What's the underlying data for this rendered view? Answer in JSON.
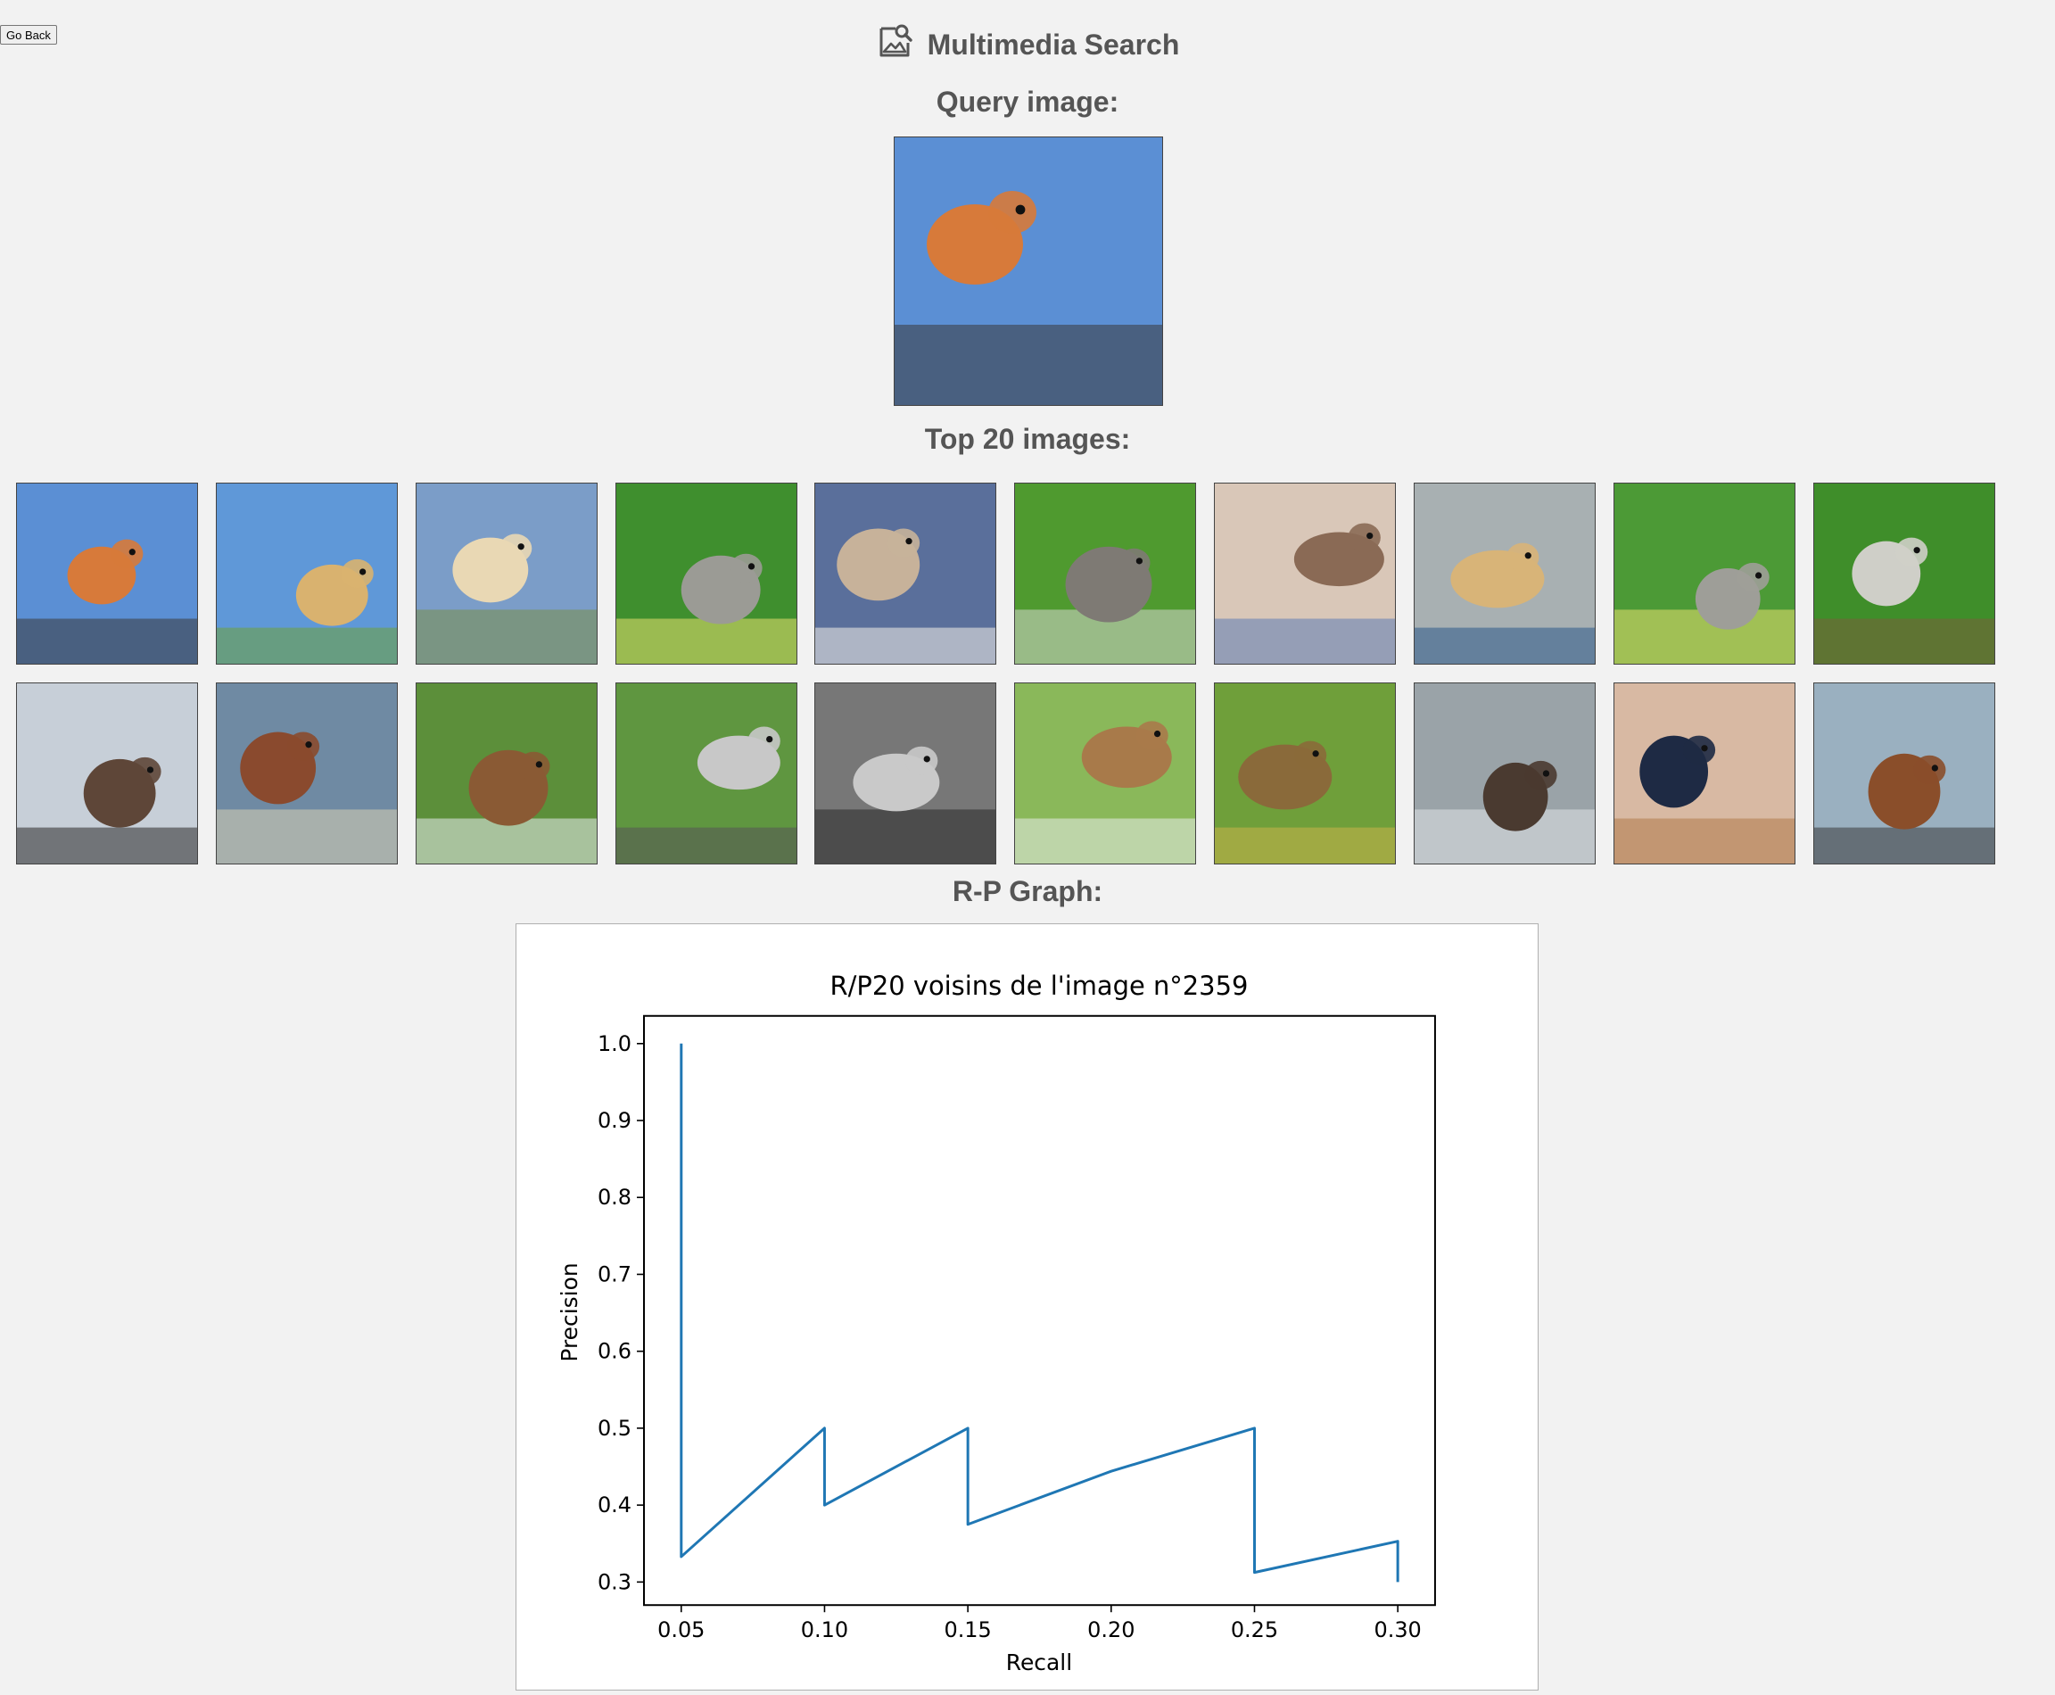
{
  "nav": {
    "go_back_label": "Go Back"
  },
  "header": {
    "title": "Multimedia Search",
    "icon": "image-search-icon"
  },
  "query": {
    "label": "Query image:",
    "image": {
      "name": "robin-on-branch",
      "colors": {
        "bg": "#5b8fd4",
        "subject": "#d77a3a",
        "accent": "#3a3a3a"
      }
    }
  },
  "results": {
    "label": "Top 20 images:",
    "images": [
      {
        "name": "robin-on-branch",
        "colors": {
          "bg": "#5b8fd4",
          "subject": "#d77a3a",
          "accent": "#3a3a3a"
        }
      },
      {
        "name": "golden-retriever-field",
        "colors": {
          "bg": "#5f98d8",
          "subject": "#d9b26f",
          "accent": "#6ea23a"
        }
      },
      {
        "name": "puppy-with-stick",
        "colors": {
          "bg": "#7b9dc8",
          "subject": "#e9d8b4",
          "accent": "#7a8e4a"
        }
      },
      {
        "name": "great-grey-owl",
        "colors": {
          "bg": "#3f8f2e",
          "subject": "#9b9b95",
          "accent": "#e8e070"
        }
      },
      {
        "name": "fox-tail-blanket",
        "colors": {
          "bg": "#5a6f9b",
          "subject": "#c7b29a",
          "accent": "#f4efe8"
        }
      },
      {
        "name": "bird-on-grass",
        "colors": {
          "bg": "#4f9a2f",
          "subject": "#7e7a74",
          "accent": "#d7d7d0"
        }
      },
      {
        "name": "husky-on-bed",
        "colors": {
          "bg": "#d9c7b8",
          "subject": "#8a6a55",
          "accent": "#5c7bb5"
        }
      },
      {
        "name": "puppy-in-basket",
        "colors": {
          "bg": "#a8b0b2",
          "subject": "#d8b478",
          "accent": "#2c5a8a"
        }
      },
      {
        "name": "great-grey-owl-2",
        "colors": {
          "bg": "#4c9a36",
          "subject": "#9e9e98",
          "accent": "#e8e070"
        }
      },
      {
        "name": "bulbul-on-twig",
        "colors": {
          "bg": "#3f8e2a",
          "subject": "#cfcfc8",
          "accent": "#7a5e3a"
        }
      },
      {
        "name": "tarantula-closeup",
        "colors": {
          "bg": "#c7cfd8",
          "subject": "#5e4638",
          "accent": "#2a2a2a"
        }
      },
      {
        "name": "dachshund-pillow",
        "colors": {
          "bg": "#6f8aa3",
          "subject": "#8a4a2e",
          "accent": "#d7d0b4"
        }
      },
      {
        "name": "dogs-on-lawn",
        "colors": {
          "bg": "#5c8f3a",
          "subject": "#8a5a34",
          "accent": "#e8ecef"
        }
      },
      {
        "name": "husky-on-grass",
        "colors": {
          "bg": "#5f9640",
          "subject": "#c8c8c8",
          "accent": "#555555"
        }
      },
      {
        "name": "golden-retriever-bw",
        "colors": {
          "bg": "#777777",
          "subject": "#c9c9c9",
          "accent": "#2a2a2a"
        }
      },
      {
        "name": "spider-in-web",
        "colors": {
          "bg": "#8ab85a",
          "subject": "#a87a4a",
          "accent": "#e8ecea"
        }
      },
      {
        "name": "bird-on-bananas",
        "colors": {
          "bg": "#6f9f3a",
          "subject": "#8a6a3a",
          "accent": "#c9b24a"
        }
      },
      {
        "name": "tarantula-jar",
        "colors": {
          "bg": "#9aa3a8",
          "subject": "#4a3a30",
          "accent": "#e0e4e6"
        }
      },
      {
        "name": "rottweiler-head",
        "colors": {
          "bg": "#d8b9a3",
          "subject": "#1e2a44",
          "accent": "#b07a4a"
        }
      },
      {
        "name": "dogs-in-water",
        "colors": {
          "bg": "#9ab0c0",
          "subject": "#8a4e2a",
          "accent": "#3a3a3a"
        }
      }
    ]
  },
  "graph": {
    "label": "R-P Graph:"
  },
  "chart_data": {
    "type": "line",
    "title": "R/P20 voisins de l'image n°2359",
    "xlabel": "Recall",
    "ylabel": "Precision",
    "xlim": [
      0.037,
      0.313
    ],
    "ylim": [
      0.27,
      1.036
    ],
    "xticks": [
      0.05,
      0.1,
      0.15,
      0.2,
      0.25,
      0.3
    ],
    "xtick_labels": [
      "0.05",
      "0.10",
      "0.15",
      "0.20",
      "0.25",
      "0.30"
    ],
    "yticks": [
      0.3,
      0.4,
      0.5,
      0.6,
      0.7,
      0.8,
      0.9,
      1.0
    ],
    "ytick_labels": [
      "0.3",
      "0.4",
      "0.5",
      "0.6",
      "0.7",
      "0.8",
      "0.9",
      "1.0"
    ],
    "series": [
      {
        "color": "#1f77b4",
        "x": [
          0.05,
          0.05,
          0.1,
          0.1,
          0.15,
          0.15,
          0.2,
          0.25,
          0.25,
          0.3,
          0.3
        ],
        "y": [
          1.0,
          0.333,
          0.5,
          0.4,
          0.5,
          0.375,
          0.444,
          0.5,
          0.3125,
          0.353,
          0.3
        ]
      }
    ]
  }
}
